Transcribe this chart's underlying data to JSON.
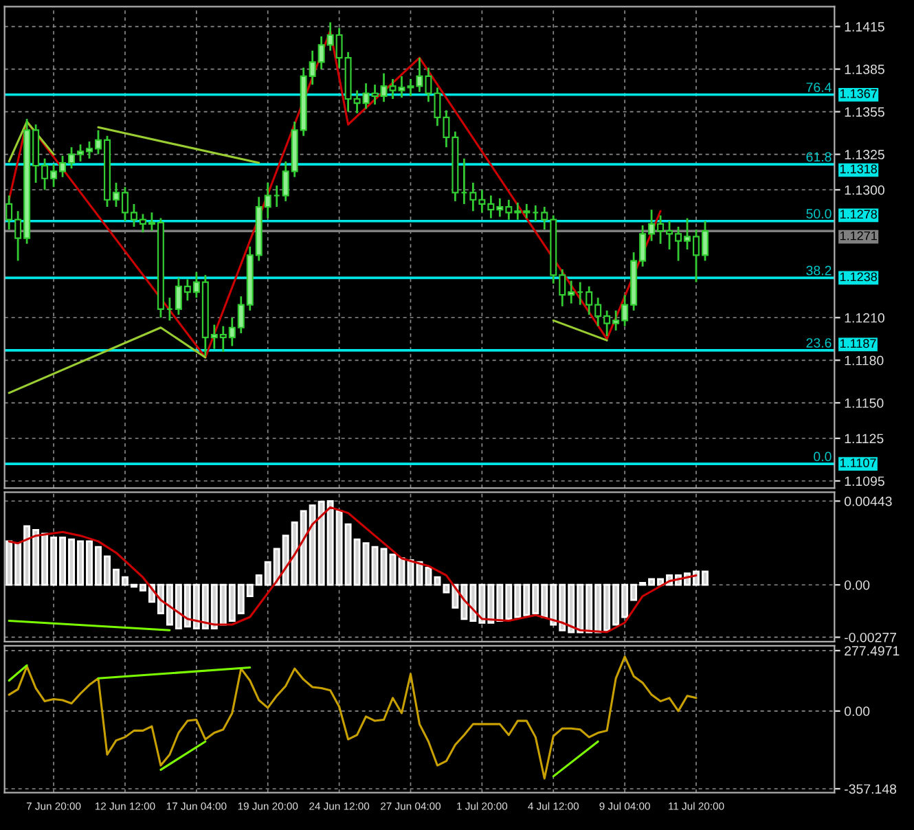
{
  "chart_data": [
    {
      "type": "candlestick",
      "color": "#33cc33",
      "grid": true,
      "tick_labels": "y",
      "ylim": [
        1.109,
        1.1429
      ],
      "categories": [
        null,
        null,
        null,
        null,
        null,
        null,
        null,
        null,
        null,
        null,
        null,
        null,
        null,
        null,
        null,
        null,
        null,
        null,
        null,
        null,
        null,
        null,
        null,
        null,
        null,
        null,
        null,
        null,
        null,
        null,
        null,
        null,
        null,
        null,
        null,
        null,
        null,
        null,
        null,
        null,
        null,
        null,
        null,
        null,
        null,
        null,
        null,
        null,
        null,
        null,
        null,
        null,
        null,
        null,
        null,
        null,
        null,
        null,
        null,
        null,
        null,
        null,
        null,
        null,
        null,
        null,
        null,
        null,
        null,
        null,
        null,
        null,
        null,
        null,
        null,
        null,
        null,
        null,
        null,
        null,
        null,
        null,
        null,
        null,
        null,
        null,
        null,
        null,
        null,
        null,
        null,
        null,
        null
      ],
      "yticks": [
        1.1415,
        1.1385,
        1.1355,
        1.1325,
        {
          "value": 1.13,
          "label": "1.1300"
        },
        {
          "value": 1.121,
          "label": "1.1210"
        },
        {
          "value": 1.118,
          "label": "1.1180"
        },
        {
          "value": 1.115,
          "label": "1.1150"
        },
        1.1125,
        1.1095
      ],
      "ohlc": [
        [
          1.129,
          1.1296,
          1.1272,
          1.1279
        ],
        [
          1.1279,
          1.1285,
          1.125,
          1.1266
        ],
        [
          1.1266,
          1.135,
          1.1262,
          1.1342
        ],
        [
          1.1342,
          1.1346,
          1.1305,
          1.1317
        ],
        [
          1.1317,
          1.1322,
          1.13,
          1.1308
        ],
        [
          1.1308,
          1.1318,
          1.1302,
          1.1313
        ],
        [
          1.1313,
          1.1324,
          1.1309,
          1.1319
        ],
        [
          1.1319,
          1.133,
          1.1315,
          1.1325
        ],
        [
          1.1325,
          1.1332,
          1.132,
          1.1327
        ],
        [
          1.1327,
          1.1334,
          1.1322,
          1.1329
        ],
        [
          1.1329,
          1.1342,
          1.1325,
          1.1335
        ],
        [
          1.1335,
          1.1338,
          1.1288,
          1.1293
        ],
        [
          1.1293,
          1.1305,
          1.1288,
          1.1298
        ],
        [
          1.1298,
          1.1302,
          1.1278,
          1.1284
        ],
        [
          1.1284,
          1.129,
          1.1274,
          1.1279
        ],
        [
          1.1279,
          1.1283,
          1.127,
          1.1276
        ],
        [
          1.1276,
          1.1284,
          1.1271,
          1.1277
        ],
        [
          1.1277,
          1.128,
          1.121,
          1.1216
        ],
        [
          1.1216,
          1.1224,
          1.1208,
          1.1216
        ],
        [
          1.1216,
          1.1238,
          1.1212,
          1.1232
        ],
        [
          1.1232,
          1.1237,
          1.1222,
          1.1228
        ],
        [
          1.1228,
          1.1242,
          1.1224,
          1.1235
        ],
        [
          1.1235,
          1.124,
          1.1183,
          1.1196
        ],
        [
          1.1196,
          1.1205,
          1.1188,
          1.1198
        ],
        [
          1.1198,
          1.1204,
          1.1186,
          1.1196
        ],
        [
          1.1196,
          1.121,
          1.119,
          1.1203
        ],
        [
          1.1203,
          1.1225,
          1.1199,
          1.1219
        ],
        [
          1.1219,
          1.126,
          1.1215,
          1.1254
        ],
        [
          1.1254,
          1.1295,
          1.125,
          1.1288
        ],
        [
          1.1288,
          1.1305,
          1.128,
          1.1296
        ],
        [
          1.1296,
          1.1303,
          1.1288,
          1.1296
        ],
        [
          1.1296,
          1.132,
          1.1292,
          1.1313
        ],
        [
          1.1313,
          1.1348,
          1.1309,
          1.1342
        ],
        [
          1.1342,
          1.1386,
          1.1338,
          1.138
        ],
        [
          1.138,
          1.1398,
          1.1374,
          1.139
        ],
        [
          1.139,
          1.1408,
          1.1385,
          1.1402
        ],
        [
          1.1402,
          1.1418,
          1.1398,
          1.1409
        ],
        [
          1.1409,
          1.1414,
          1.1386,
          1.1393
        ],
        [
          1.1393,
          1.1397,
          1.1355,
          1.1364
        ],
        [
          1.1364,
          1.137,
          1.1354,
          1.1361
        ],
        [
          1.1361,
          1.1375,
          1.1357,
          1.1368
        ],
        [
          1.1368,
          1.1374,
          1.136,
          1.1366
        ],
        [
          1.1366,
          1.1382,
          1.1362,
          1.1373
        ],
        [
          1.1373,
          1.1378,
          1.1364,
          1.137
        ],
        [
          1.137,
          1.138,
          1.1365,
          1.1372
        ],
        [
          1.1372,
          1.1378,
          1.1366,
          1.1373
        ],
        [
          1.1373,
          1.1393,
          1.1369,
          1.138
        ],
        [
          1.138,
          1.1386,
          1.1362,
          1.1368
        ],
        [
          1.1368,
          1.1372,
          1.1345,
          1.1351
        ],
        [
          1.1351,
          1.1356,
          1.133,
          1.1337
        ],
        [
          1.1337,
          1.1341,
          1.1292,
          1.1298
        ],
        [
          1.1298,
          1.1322,
          1.129,
          1.1298
        ],
        [
          1.1298,
          1.1305,
          1.1285,
          1.1293
        ],
        [
          1.1293,
          1.13,
          1.1284,
          1.129
        ],
        [
          1.129,
          1.1296,
          1.128,
          1.1286
        ],
        [
          1.1286,
          1.1294,
          1.1281,
          1.1288
        ],
        [
          1.1288,
          1.1293,
          1.1279,
          1.1284
        ],
        [
          1.1284,
          1.1291,
          1.1279,
          1.1285
        ],
        [
          1.1285,
          1.129,
          1.128,
          1.1284
        ],
        [
          1.1284,
          1.1289,
          1.1278,
          1.1284
        ],
        [
          1.1284,
          1.1288,
          1.1272,
          1.1279
        ],
        [
          1.1279,
          1.1282,
          1.1234,
          1.124
        ],
        [
          1.124,
          1.1244,
          1.1218,
          1.1226
        ],
        [
          1.1226,
          1.1236,
          1.122,
          1.1228
        ],
        [
          1.1228,
          1.1235,
          1.1219,
          1.1228
        ],
        [
          1.1228,
          1.1232,
          1.1212,
          1.1219
        ],
        [
          1.1219,
          1.1224,
          1.1204,
          1.1211
        ],
        [
          1.1211,
          1.1215,
          1.1197,
          1.1206
        ],
        [
          1.1206,
          1.1215,
          1.1201,
          1.1208
        ],
        [
          1.1208,
          1.1226,
          1.1204,
          1.1219
        ],
        [
          1.1219,
          1.1256,
          1.1215,
          1.125
        ],
        [
          1.125,
          1.1275,
          1.1246,
          1.1269
        ],
        [
          1.1269,
          1.1286,
          1.1264,
          1.1276
        ],
        [
          1.1276,
          1.1282,
          1.1262,
          1.1271
        ],
        [
          1.1271,
          1.1278,
          1.1258,
          1.1269
        ],
        [
          1.1269,
          1.1274,
          1.125,
          1.1264
        ],
        [
          1.1264,
          1.128,
          1.1258,
          1.1267
        ],
        [
          1.1267,
          1.1272,
          1.1235,
          1.1254
        ],
        [
          1.1254,
          1.1278,
          1.125,
          1.1271
        ],
        null,
        null,
        null,
        null,
        null,
        null,
        null,
        null,
        null,
        null,
        null,
        null,
        null,
        null
      ],
      "series": [
        {
          "type": "line",
          "color": "#cc0000",
          "values": [
            1.1293,
            null,
            1.1348,
            null,
            null,
            null,
            null,
            null,
            null,
            null,
            null,
            null,
            null,
            null,
            null,
            null,
            null,
            null,
            null,
            null,
            null,
            null,
            1.1182,
            null,
            null,
            null,
            null,
            null,
            null,
            null,
            null,
            null,
            null,
            null,
            null,
            null,
            1.1412,
            null,
            1.1346,
            null,
            null,
            null,
            null,
            null,
            null,
            null,
            1.1393,
            null,
            null,
            null,
            null,
            null,
            null,
            null,
            null,
            null,
            null,
            null,
            null,
            null,
            null,
            null,
            null,
            null,
            null,
            null,
            null,
            1.1195,
            null,
            null,
            null,
            null,
            null,
            1.1285,
            null,
            null,
            null,
            null,
            null,
            null,
            null,
            null,
            null,
            null,
            null,
            null,
            null,
            null,
            null,
            null,
            null,
            null,
            null
          ]
        },
        {
          "type": "line",
          "color": "#9acd32",
          "values": [
            1.132,
            null,
            1.1348,
            null,
            null,
            1.1325,
            null,
            null,
            null,
            null,
            null,
            null,
            null,
            null,
            null,
            null,
            null,
            null,
            null,
            null,
            null,
            null,
            null,
            null,
            null,
            null,
            null,
            null,
            null,
            null,
            null,
            null,
            null,
            null,
            null,
            null,
            null,
            null,
            null,
            null,
            null,
            null,
            null,
            null,
            null,
            null,
            null,
            null,
            null,
            null,
            null,
            null,
            null,
            null,
            null,
            null,
            null,
            null,
            null,
            null,
            null,
            null,
            null,
            null,
            null,
            null,
            null,
            null,
            null,
            null,
            null,
            null,
            null,
            null,
            null,
            null,
            null,
            null,
            null,
            null,
            null,
            null,
            null,
            null,
            null,
            null,
            null,
            null,
            null,
            null,
            null,
            null,
            null
          ]
        },
        {
          "type": "line",
          "color": "#9acd32",
          "values": [
            null,
            null,
            null,
            null,
            null,
            null,
            null,
            null,
            null,
            null,
            1.1344,
            null,
            null,
            null,
            null,
            null,
            null,
            null,
            null,
            null,
            null,
            null,
            null,
            null,
            null,
            null,
            null,
            null,
            1.1319,
            null,
            null,
            null,
            null,
            null,
            null,
            null,
            null,
            null,
            null,
            null,
            null,
            null,
            null,
            null,
            null,
            null,
            null,
            null,
            null,
            null,
            null,
            null,
            null,
            null,
            null,
            null,
            null,
            null,
            null,
            null,
            null,
            null,
            null,
            null,
            null,
            null,
            null,
            null,
            null,
            null,
            null,
            null,
            null,
            null,
            null,
            null,
            null,
            null,
            null,
            null,
            null,
            null,
            null,
            null,
            null,
            null,
            null,
            null,
            null,
            null,
            null,
            null,
            null
          ]
        },
        {
          "type": "line",
          "color": "#9acd32",
          "values": [
            1.1157,
            null,
            null,
            null,
            null,
            null,
            null,
            null,
            null,
            null,
            null,
            null,
            null,
            null,
            null,
            null,
            null,
            1.1203,
            null,
            null,
            null,
            null,
            1.1182,
            null,
            null,
            null,
            null,
            null,
            null,
            null,
            null,
            null,
            null,
            null,
            null,
            null,
            null,
            null,
            null,
            null,
            null,
            null,
            null,
            null,
            null,
            null,
            null,
            null,
            null,
            null,
            null,
            null,
            null,
            null,
            null,
            null,
            null,
            null,
            null,
            null,
            null,
            null,
            null,
            null,
            null,
            null,
            null,
            null,
            null,
            null,
            null,
            null,
            null,
            null,
            null,
            null,
            null,
            null,
            null,
            null,
            null,
            null,
            null,
            null,
            null,
            null,
            null,
            null,
            null,
            null,
            null,
            null,
            null
          ]
        },
        {
          "type": "line",
          "color": "#9acd32",
          "values": [
            null,
            null,
            null,
            null,
            null,
            null,
            null,
            null,
            null,
            null,
            null,
            null,
            null,
            null,
            null,
            null,
            null,
            null,
            null,
            null,
            null,
            null,
            null,
            null,
            null,
            null,
            null,
            null,
            null,
            null,
            null,
            null,
            null,
            null,
            null,
            null,
            null,
            null,
            null,
            null,
            null,
            null,
            null,
            null,
            null,
            null,
            null,
            null,
            null,
            null,
            null,
            null,
            null,
            null,
            null,
            null,
            null,
            null,
            null,
            null,
            null,
            1.1208,
            null,
            null,
            null,
            null,
            null,
            1.1194,
            null,
            null,
            null,
            null,
            null,
            null,
            null,
            null,
            null,
            null,
            null,
            null,
            null,
            null,
            null,
            null,
            null,
            null,
            null,
            null,
            null,
            null,
            null,
            null,
            null
          ]
        }
      ],
      "ref_lines": [
        {
          "axis": "y",
          "value": 1.1367,
          "label": "1.1367",
          "color": "#00e5e5"
        },
        {
          "axis": "y",
          "value": 1.1318,
          "label": "1.1318",
          "color": "#00e5e5"
        },
        {
          "axis": "y",
          "value": 1.1278,
          "label": "1.1278",
          "color": "#00e5e5"
        },
        {
          "axis": "y",
          "value": 1.1238,
          "label": "1.1238",
          "color": "#00e5e5"
        },
        {
          "axis": "y",
          "value": 1.1187,
          "label": "1.1187",
          "color": "#00e5e5"
        },
        {
          "axis": "y",
          "value": 1.1107,
          "label": "1.1107",
          "color": "#00e5e5"
        },
        {
          "axis": "y",
          "value": 1.1271,
          "label": "1.1271",
          "color": "#808080"
        }
      ],
      "annotations": [
        "76.4",
        "61.8",
        "50.0",
        "38.2",
        "23.6",
        "0.0"
      ]
    },
    {
      "type": "bar",
      "grid": true,
      "tick_labels": "y",
      "ylim": [
        -0.003,
        0.0049
      ],
      "categories": [
        null,
        null,
        null,
        null,
        null,
        null,
        null,
        null,
        null,
        null,
        null,
        null,
        null,
        null,
        null,
        null,
        null,
        null,
        null,
        null,
        null,
        null,
        null,
        null,
        null,
        null,
        null,
        null,
        null,
        null,
        null,
        null,
        null,
        null,
        null,
        null,
        null,
        null,
        null,
        null,
        null,
        null,
        null,
        null,
        null,
        null,
        null,
        null,
        null,
        null,
        null,
        null,
        null,
        null,
        null,
        null,
        null,
        null,
        null,
        null,
        null,
        null,
        null,
        null,
        null,
        null,
        null,
        null,
        null,
        null,
        null,
        null,
        null,
        null,
        null,
        null,
        null,
        null,
        null,
        null,
        null,
        null,
        null,
        null,
        null,
        null,
        null,
        null,
        null,
        null,
        null,
        null,
        null
      ],
      "yticks": [
        0.00443,
        {
          "value": 0,
          "label": "0.00"
        },
        -0.00277
      ],
      "series": [
        {
          "type": "bar",
          "color": "#d3d3d3",
          "values": [
            0.0023,
            0.0022,
            0.0031,
            0.0029,
            0.0027,
            0.0025,
            0.0025,
            0.0024,
            0.0023,
            0.0023,
            0.002,
            0.0015,
            0.0008,
            0.0004,
            -0.0001,
            -0.0003,
            -0.0009,
            -0.0015,
            -0.0021,
            -0.0023,
            -0.0022,
            -0.0023,
            -0.0023,
            -0.0023,
            -0.0021,
            -0.0019,
            -0.0015,
            -0.0006,
            0.0005,
            0.0012,
            0.0019,
            0.0026,
            0.0033,
            0.0039,
            0.0042,
            0.0044,
            0.00443,
            0.0039,
            0.0032,
            0.0024,
            0.0022,
            0.002,
            0.0019,
            0.0016,
            0.0014,
            0.0013,
            0.0012,
            0.0009,
            0.0004,
            -0.0004,
            -0.0012,
            -0.0018,
            -0.0019,
            -0.002,
            -0.002,
            -0.0019,
            -0.0018,
            -0.0017,
            -0.0016,
            -0.0015,
            -0.0017,
            -0.0021,
            -0.0024,
            -0.0025,
            -0.0025,
            -0.0025,
            -0.0025,
            -0.0024,
            -0.0021,
            -0.0017,
            -0.0008,
            0.0001,
            0.0003,
            0.0003,
            0.0005,
            0.0005,
            0.0006,
            0.0007,
            0.0007,
            null,
            null,
            null,
            null,
            null,
            null,
            null,
            null,
            null,
            null,
            null,
            null,
            null,
            null
          ]
        },
        {
          "type": "line",
          "color": "#cc0000",
          "values": [
            0.0023,
            0.0022,
            null,
            0.0026,
            null,
            null,
            0.0028,
            null,
            0.0026,
            null,
            0.0023,
            null,
            0.0017,
            null,
            null,
            0.0004,
            null,
            -0.0008,
            null,
            null,
            -0.0018,
            null,
            null,
            -0.0021,
            null,
            -0.0021,
            null,
            -0.0017,
            null,
            null,
            0.0002,
            null,
            0.0016,
            null,
            0.0032,
            null,
            0.0041,
            null,
            0.0038,
            null,
            null,
            0.0026,
            null,
            null,
            0.0014,
            null,
            null,
            0.001,
            null,
            0.0005,
            null,
            -0.0008,
            null,
            -0.0018,
            null,
            null,
            -0.0019,
            null,
            null,
            -0.0016,
            null,
            null,
            -0.002,
            null,
            -0.0024,
            null,
            null,
            -0.0025,
            null,
            -0.002,
            null,
            -0.0006,
            null,
            null,
            0.0002,
            null,
            null,
            0.0005,
            null,
            null,
            null,
            null,
            null,
            null,
            null,
            null,
            null,
            null,
            null,
            null,
            null,
            null,
            null
          ]
        },
        {
          "type": "line",
          "color": "#7cfc00",
          "values": [
            -0.0019,
            null,
            null,
            null,
            null,
            null,
            null,
            null,
            null,
            null,
            null,
            null,
            null,
            null,
            null,
            null,
            null,
            null,
            -0.0024,
            null,
            null,
            null,
            null,
            null,
            null,
            null,
            null,
            null,
            null,
            null,
            null,
            null,
            null,
            null,
            null,
            null,
            null,
            null,
            null,
            null,
            null,
            null,
            null,
            null,
            null,
            null,
            null,
            null,
            null,
            null,
            null,
            null,
            null,
            null,
            null,
            null,
            null,
            null,
            null,
            null,
            null,
            null,
            null,
            null,
            null,
            null,
            null,
            null,
            null,
            null,
            null,
            null,
            null,
            null,
            null,
            null,
            null,
            null,
            null,
            null,
            null,
            null,
            null,
            null,
            null,
            null,
            null,
            null,
            null,
            null,
            null,
            null,
            null
          ]
        }
      ]
    },
    {
      "type": "line",
      "grid": true,
      "ylim": [
        -375,
        300
      ],
      "categories": [
        null,
        null,
        null,
        null,
        null,
        "7 Jun 20:00",
        null,
        null,
        null,
        null,
        null,
        null,
        null,
        "12 Jun 12:00",
        null,
        null,
        null,
        null,
        null,
        null,
        null,
        "17 Jun 04:00",
        null,
        null,
        null,
        null,
        null,
        null,
        null,
        "19 Jun 20:00",
        null,
        null,
        null,
        null,
        null,
        null,
        null,
        "24 Jun 12:00",
        null,
        null,
        null,
        null,
        null,
        null,
        null,
        "27 Jun 04:00",
        null,
        null,
        null,
        null,
        null,
        null,
        null,
        "1 Jul 20:00",
        null,
        null,
        null,
        null,
        null,
        null,
        null,
        "4 Jul 12:00",
        null,
        null,
        null,
        null,
        null,
        null,
        null,
        "9 Jul 04:00",
        null,
        null,
        null,
        null,
        null,
        null,
        null,
        "11 Jul 20:00",
        null,
        null,
        null,
        null,
        null,
        null,
        null,
        null,
        null,
        null,
        null,
        null,
        null,
        null,
        null
      ],
      "yticks": [
        277.4971,
        {
          "value": 0,
          "label": "0.00"
        },
        -357.148
      ],
      "series": [
        {
          "type": "line",
          "color": "#c8a000",
          "values": [
            75,
            100,
            205,
            105,
            45,
            55,
            50,
            35,
            80,
            120,
            150,
            -200,
            -135,
            -120,
            -90,
            -90,
            -70,
            -250,
            -200,
            -100,
            -45,
            -40,
            -130,
            -100,
            -85,
            -10,
            195,
            140,
            50,
            15,
            70,
            115,
            195,
            145,
            110,
            105,
            95,
            20,
            -130,
            -110,
            -25,
            -45,
            -40,
            60,
            -10,
            170,
            -60,
            -140,
            -250,
            -230,
            -155,
            -110,
            -60,
            -60,
            -60,
            -60,
            -110,
            -45,
            -45,
            -120,
            -310,
            -115,
            -80,
            -80,
            -85,
            -120,
            -100,
            -90,
            150,
            250,
            160,
            130,
            75,
            45,
            60,
            0,
            70,
            60,
            null,
            null,
            null,
            null,
            null,
            null,
            null,
            null,
            null,
            null,
            null,
            null,
            null,
            null,
            null
          ]
        },
        {
          "type": "line",
          "color": "#7cfc00",
          "values": [
            140,
            null,
            210,
            null,
            null,
            null,
            null,
            null,
            null,
            null,
            null,
            null,
            null,
            null,
            null,
            null,
            null,
            null,
            null,
            null,
            null,
            null,
            null,
            null,
            null,
            null,
            null,
            null,
            null,
            null,
            null,
            null,
            null,
            null,
            null,
            null,
            null,
            null,
            null,
            null,
            null,
            null,
            null,
            null,
            null,
            null,
            null,
            null,
            null,
            null,
            null,
            null,
            null,
            null,
            null,
            null,
            null,
            null,
            null,
            null,
            null,
            null,
            null,
            null,
            null,
            null,
            null,
            null,
            null,
            null,
            null,
            null,
            null,
            null,
            null,
            null,
            null,
            null,
            null,
            null,
            null,
            null,
            null,
            null,
            null,
            null,
            null,
            null,
            null,
            null,
            null,
            null,
            null
          ]
        },
        {
          "type": "line",
          "color": "#7cfc00",
          "values": [
            null,
            null,
            null,
            null,
            null,
            null,
            null,
            null,
            null,
            null,
            150,
            null,
            null,
            null,
            null,
            null,
            null,
            null,
            null,
            null,
            null,
            null,
            null,
            null,
            null,
            null,
            null,
            200,
            null,
            null,
            null,
            null,
            null,
            null,
            null,
            null,
            null,
            null,
            null,
            null,
            null,
            null,
            null,
            null,
            null,
            null,
            null,
            null,
            null,
            null,
            null,
            null,
            null,
            null,
            null,
            null,
            null,
            null,
            null,
            null,
            null,
            null,
            null,
            null,
            null,
            null,
            null,
            null,
            null,
            null,
            null,
            null,
            null,
            null,
            null,
            null,
            null,
            null,
            null,
            null,
            null,
            null,
            null,
            null,
            null,
            null,
            null,
            null,
            null,
            null,
            null,
            null,
            null
          ]
        },
        {
          "type": "line",
          "color": "#7cfc00",
          "values": [
            null,
            null,
            null,
            null,
            null,
            null,
            null,
            null,
            null,
            null,
            null,
            null,
            null,
            null,
            null,
            null,
            null,
            -270,
            null,
            null,
            null,
            null,
            -140,
            null,
            null,
            null,
            null,
            null,
            null,
            null,
            null,
            null,
            null,
            null,
            null,
            null,
            null,
            null,
            null,
            null,
            null,
            null,
            null,
            null,
            null,
            null,
            null,
            null,
            null,
            null,
            null,
            null,
            null,
            null,
            null,
            null,
            null,
            null,
            null,
            null,
            null,
            null,
            null,
            null,
            null,
            null,
            null,
            null,
            null,
            null,
            null,
            null,
            null,
            null,
            null,
            null,
            null,
            null,
            null,
            null,
            null,
            null,
            null,
            null,
            null,
            null,
            null,
            null,
            null,
            null,
            null,
            null,
            null
          ]
        },
        {
          "type": "line",
          "color": "#7cfc00",
          "values": [
            null,
            null,
            null,
            null,
            null,
            null,
            null,
            null,
            null,
            null,
            null,
            null,
            null,
            null,
            null,
            null,
            null,
            null,
            null,
            null,
            null,
            null,
            null,
            null,
            null,
            null,
            null,
            null,
            null,
            null,
            null,
            null,
            null,
            null,
            null,
            null,
            null,
            null,
            null,
            null,
            null,
            null,
            null,
            null,
            null,
            null,
            null,
            null,
            null,
            null,
            null,
            null,
            null,
            null,
            null,
            null,
            null,
            null,
            null,
            null,
            null,
            -300,
            null,
            null,
            null,
            null,
            -140,
            null,
            null,
            null,
            null,
            null,
            null,
            null,
            null,
            null,
            null,
            null,
            null,
            null,
            null,
            null,
            null,
            null,
            null,
            null,
            null,
            null,
            null,
            null,
            null,
            null,
            null
          ]
        }
      ]
    }
  ]
}
